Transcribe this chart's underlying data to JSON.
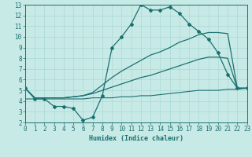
{
  "xlabel": "Humidex (Indice chaleur)",
  "bg_color": "#c8eae6",
  "grid_color": "#aad8d4",
  "line_color": "#1a7070",
  "xlim": [
    0,
    23
  ],
  "ylim": [
    2,
    13
  ],
  "xticks": [
    0,
    1,
    2,
    3,
    4,
    5,
    6,
    7,
    8,
    9,
    10,
    11,
    12,
    13,
    14,
    15,
    16,
    17,
    18,
    19,
    20,
    21,
    22,
    23
  ],
  "yticks": [
    2,
    3,
    4,
    5,
    6,
    7,
    8,
    9,
    10,
    11,
    12,
    13
  ],
  "line_main_x": [
    0,
    1,
    2,
    3,
    4,
    5,
    6,
    7,
    8,
    9,
    10,
    11,
    12,
    13,
    14,
    15,
    16,
    17,
    18,
    19,
    20,
    21,
    22,
    23
  ],
  "line_main_y": [
    5.2,
    4.2,
    4.2,
    3.5,
    3.5,
    3.3,
    2.2,
    2.5,
    4.5,
    9.0,
    10.0,
    11.2,
    13.0,
    12.5,
    12.5,
    12.8,
    12.2,
    11.2,
    10.5,
    9.8,
    8.5,
    6.5,
    5.2,
    5.2
  ],
  "line2_x": [
    0,
    1,
    2,
    3,
    4,
    5,
    6,
    7,
    8,
    9,
    10,
    11,
    12,
    13,
    14,
    15,
    16,
    17,
    18,
    19,
    20,
    21,
    22,
    23
  ],
  "line2_y": [
    5.2,
    4.3,
    4.3,
    4.3,
    4.3,
    4.4,
    4.5,
    4.8,
    5.5,
    6.2,
    6.8,
    7.3,
    7.8,
    8.3,
    8.6,
    9.0,
    9.5,
    9.8,
    10.2,
    10.4,
    10.4,
    10.3,
    5.2,
    5.2
  ],
  "line3_x": [
    0,
    1,
    2,
    3,
    4,
    5,
    6,
    7,
    8,
    9,
    10,
    11,
    12,
    13,
    14,
    15,
    16,
    17,
    18,
    19,
    20,
    21,
    22,
    23
  ],
  "line3_y": [
    5.2,
    4.3,
    4.3,
    4.3,
    4.3,
    4.4,
    4.5,
    4.7,
    5.0,
    5.3,
    5.6,
    5.9,
    6.2,
    6.4,
    6.7,
    7.0,
    7.3,
    7.6,
    7.9,
    8.1,
    8.1,
    8.0,
    5.2,
    5.2
  ],
  "line4_x": [
    0,
    1,
    2,
    3,
    4,
    5,
    6,
    7,
    8,
    9,
    10,
    11,
    12,
    13,
    14,
    15,
    16,
    17,
    18,
    19,
    20,
    21,
    22,
    23
  ],
  "line4_y": [
    4.2,
    4.2,
    4.2,
    4.2,
    4.2,
    4.2,
    4.2,
    4.3,
    4.3,
    4.3,
    4.4,
    4.4,
    4.5,
    4.5,
    4.6,
    4.7,
    4.8,
    4.9,
    5.0,
    5.0,
    5.0,
    5.1,
    5.1,
    5.2
  ]
}
